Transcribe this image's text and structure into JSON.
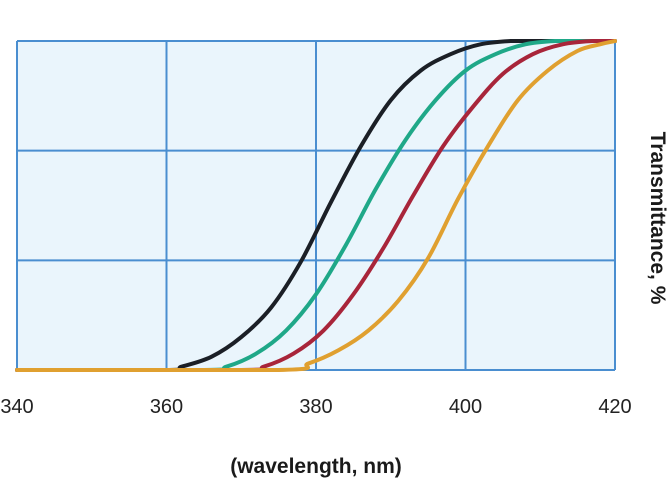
{
  "chart_data": {
    "type": "line",
    "title": "",
    "xlabel": "(wavelength, nm)",
    "ylabel": "Transmittance, %",
    "xlim": [
      340,
      420
    ],
    "ylim": [
      0,
      100
    ],
    "x_ticks": [
      "340",
      "360",
      "380",
      "400",
      "420"
    ],
    "grid": true,
    "legend": "none",
    "series": [
      {
        "color": "#1b1f26",
        "x": [
          340,
          360,
          362,
          366,
          370,
          374,
          378,
          382,
          386,
          390,
          394,
          398,
          402,
          406,
          410,
          414,
          420
        ],
        "y": [
          0,
          0,
          1,
          4,
          10,
          19,
          33,
          51,
          68,
          82,
          91,
          96,
          99,
          100,
          100,
          100,
          100
        ]
      },
      {
        "color": "#1fa888",
        "x": [
          340,
          365,
          368,
          372,
          376,
          380,
          384,
          388,
          392,
          396,
          400,
          404,
          408,
          412,
          416,
          420
        ],
        "y": [
          0,
          0,
          1,
          5,
          12,
          23,
          38,
          55,
          70,
          82,
          91,
          96,
          99,
          100,
          100,
          100
        ]
      },
      {
        "color": "#a8253a",
        "x": [
          340,
          370,
          373,
          377,
          381,
          385,
          389,
          393,
          397,
          401,
          405,
          409,
          413,
          417,
          420
        ],
        "y": [
          0,
          0,
          1,
          5,
          12,
          23,
          37,
          53,
          68,
          80,
          90,
          96,
          99,
          100,
          100
        ]
      },
      {
        "color": "#e0a030",
        "x": [
          340,
          375,
          379,
          383,
          387,
          391,
          395,
          399,
          403,
          407,
          411,
          415,
          418,
          420
        ],
        "y": [
          0,
          0,
          2,
          6,
          12,
          21,
          34,
          52,
          68,
          82,
          91,
          97,
          99,
          100
        ]
      }
    ]
  },
  "style": {
    "plot_bg": "#eaf5fc",
    "grid_color": "#4a8ed0"
  }
}
